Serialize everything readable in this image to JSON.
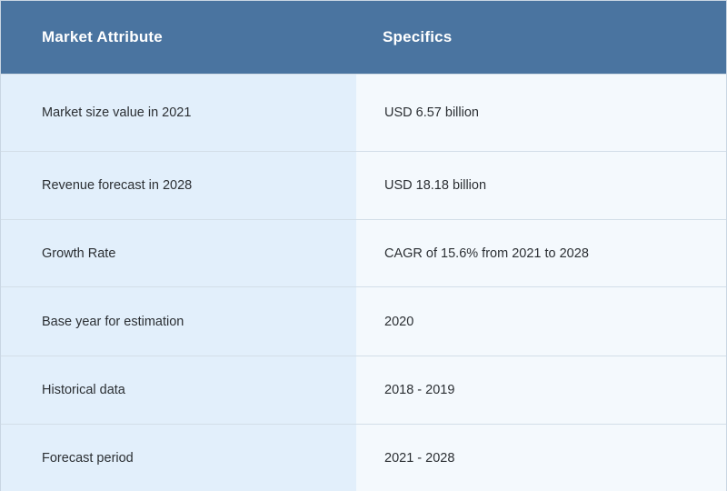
{
  "table": {
    "headers": [
      "Market Attribute",
      "Specifics"
    ],
    "rows": [
      {
        "attribute": "Market size value in 2021",
        "specific": "USD 6.57 billion"
      },
      {
        "attribute": "Revenue forecast in 2028",
        "specific": "USD 18.18 billion"
      },
      {
        "attribute": "Growth Rate",
        "specific": "CAGR of 15.6% from 2021 to 2028"
      },
      {
        "attribute": "Base year for estimation",
        "specific": "2020"
      },
      {
        "attribute": "Historical data",
        "specific": "2018 - 2019"
      },
      {
        "attribute": "Forecast period",
        "specific": "2021 - 2028"
      }
    ]
  },
  "colors": {
    "header_bg": "#4a74a0",
    "header_text": "#ffffff",
    "left_column_bg": "#e2effb",
    "right_column_bg": "#f4f9fd",
    "row_divider": "#d3dee8"
  }
}
